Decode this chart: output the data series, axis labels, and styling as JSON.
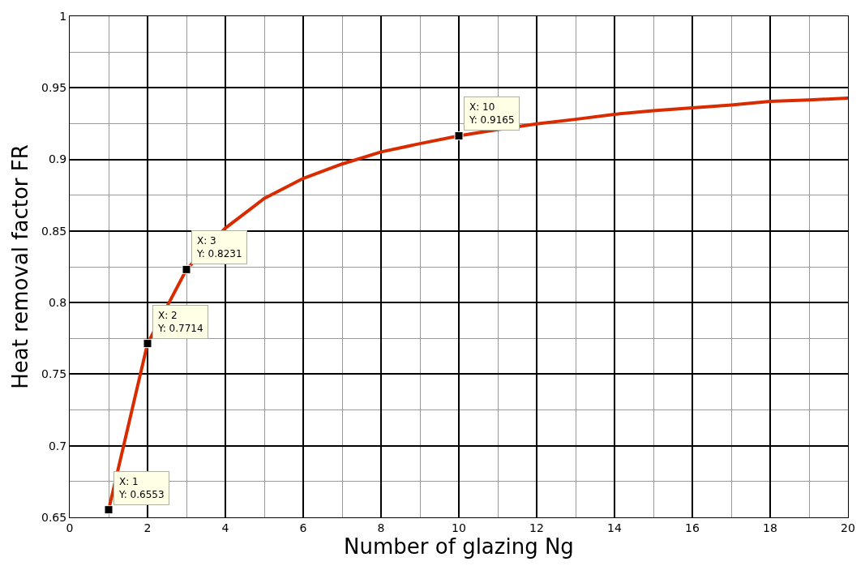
{
  "chart_data": {
    "type": "line",
    "xlabel": "Number of glazing Ng",
    "ylabel": "Heat removal factor FR",
    "x": [
      1,
      2,
      3,
      4,
      5,
      6,
      7,
      8,
      9,
      10,
      11,
      12,
      13,
      14,
      15,
      16,
      17,
      18,
      19,
      20
    ],
    "series": [
      {
        "color": "#d92b00",
        "values": [
          0.6553,
          0.7714,
          0.8231,
          0.852,
          0.8727,
          0.8867,
          0.8968,
          0.9052,
          0.911,
          0.9165,
          0.9208,
          0.9248,
          0.928,
          0.9315,
          0.934,
          0.936,
          0.938,
          0.9405,
          0.9415,
          0.9428
        ]
      },
      {
        "type": "scatter",
        "color": "#000000",
        "marker": "square",
        "x": [
          1,
          2,
          3,
          10
        ],
        "values": [
          0.6553,
          0.7714,
          0.8231,
          0.9165
        ]
      }
    ],
    "annotations": [
      {
        "text": "X: 1\nY: 0.6553",
        "x": 1,
        "y": 0.6553
      },
      {
        "text": "X: 2\nY: 0.7714",
        "x": 2,
        "y": 0.7714
      },
      {
        "text": "X: 3\nY: 0.8231",
        "x": 3,
        "y": 0.8231
      },
      {
        "text": "X: 10\nY: 0.9165",
        "x": 10,
        "y": 0.9165
      }
    ],
    "xlim": [
      0,
      20
    ],
    "xticks": [
      0,
      2,
      4,
      6,
      8,
      10,
      12,
      14,
      16,
      18,
      20
    ],
    "ylim": [
      0.65,
      1
    ],
    "yticks": [
      0.65,
      0.7,
      0.75,
      0.8,
      0.85,
      0.9,
      0.95,
      1
    ],
    "grid": true
  }
}
